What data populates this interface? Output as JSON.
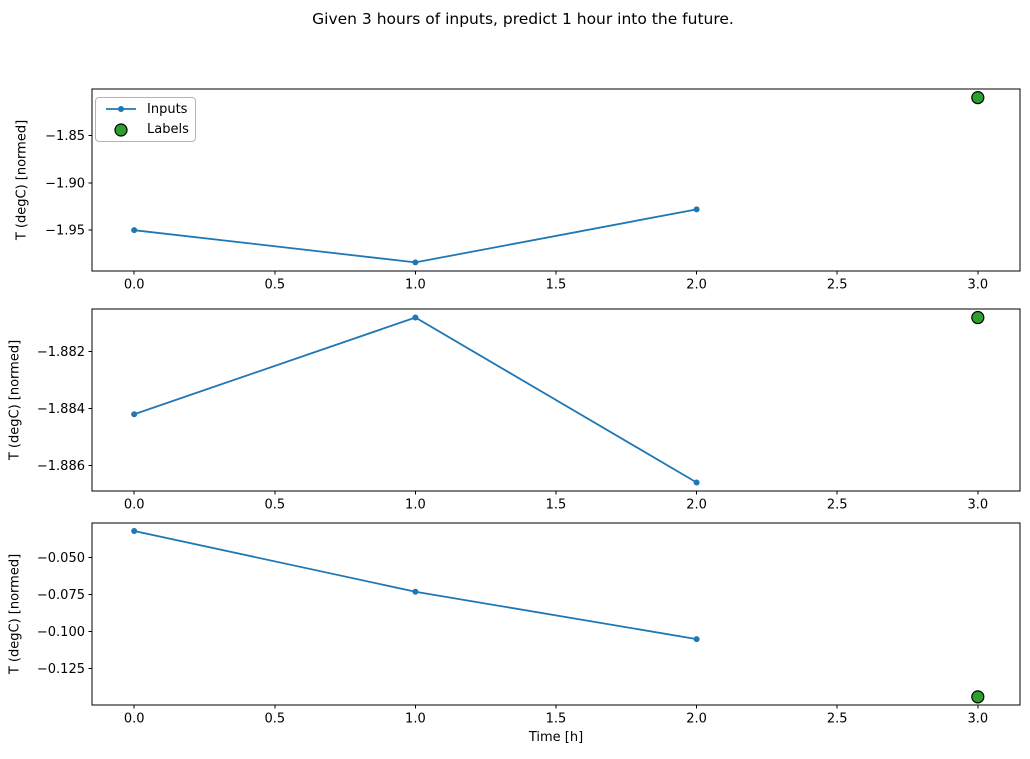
{
  "figure": {
    "title": "Given 3 hours of inputs, predict 1 hour into the future.",
    "xlabel": "Time [h]",
    "background": "#ffffff"
  },
  "legend": {
    "position": "upper-left-of-first-subplot",
    "entries": [
      {
        "label": "Inputs",
        "type": "line-marker",
        "color": "#1f77b4"
      },
      {
        "label": "Labels",
        "type": "circle",
        "color": "#2ca02c",
        "edge": "#000000"
      }
    ]
  },
  "x_axis": {
    "label": "Time [h]",
    "ticks": [
      0.0,
      0.5,
      1.0,
      1.5,
      2.0,
      2.5,
      3.0
    ],
    "tick_labels": [
      "0.0",
      "0.5",
      "1.0",
      "1.5",
      "2.0",
      "2.5",
      "3.0"
    ]
  },
  "chart_data": [
    {
      "type": "line",
      "ylabel": "T (degC) [normed]",
      "xlim": [
        -0.15,
        3.15
      ],
      "ylim": [
        -1.9931,
        -1.8009
      ],
      "yticks": [
        -1.85,
        -1.9,
        -1.95
      ],
      "ytick_labels": [
        "−1.85",
        "−1.90",
        "−1.95"
      ],
      "grid": false,
      "legend_visible": true,
      "series": [
        {
          "name": "Inputs",
          "style": "line+marker",
          "color": "#1f77b4",
          "x": [
            0,
            1,
            2
          ],
          "y": [
            -1.95,
            -1.984,
            -1.928
          ]
        },
        {
          "name": "Labels",
          "style": "scatter",
          "color": "#2ca02c",
          "edge": "#000000",
          "x": [
            3
          ],
          "y": [
            -1.81
          ]
        }
      ]
    },
    {
      "type": "line",
      "ylabel": "T (degC) [normed]",
      "xlim": [
        -0.15,
        3.15
      ],
      "ylim": [
        -1.8869,
        -1.8805
      ],
      "yticks": [
        -1.882,
        -1.884,
        -1.886
      ],
      "ytick_labels": [
        "−1.882",
        "−1.884",
        "−1.886"
      ],
      "grid": false,
      "legend_visible": false,
      "series": [
        {
          "name": "Inputs",
          "style": "line+marker",
          "color": "#1f77b4",
          "x": [
            0,
            1,
            2
          ],
          "y": [
            -1.8842,
            -1.8808,
            -1.8866
          ]
        },
        {
          "name": "Labels",
          "style": "scatter",
          "color": "#2ca02c",
          "edge": "#000000",
          "x": [
            3
          ],
          "y": [
            -1.8808
          ]
        }
      ]
    },
    {
      "type": "line",
      "ylabel": "T (degC) [normed]",
      "xlim": [
        -0.15,
        3.15
      ],
      "ylim": [
        -0.1495,
        -0.0266
      ],
      "yticks": [
        -0.05,
        -0.075,
        -0.1,
        -0.125
      ],
      "ytick_labels": [
        "−0.050",
        "−0.075",
        "−0.100",
        "−0.125"
      ],
      "grid": false,
      "legend_visible": false,
      "series": [
        {
          "name": "Inputs",
          "style": "line+marker",
          "color": "#1f77b4",
          "x": [
            0,
            1,
            2
          ],
          "y": [
            -0.032,
            -0.073,
            -0.105
          ]
        },
        {
          "name": "Labels",
          "style": "scatter",
          "color": "#2ca02c",
          "edge": "#000000",
          "x": [
            3
          ],
          "y": [
            -0.144
          ]
        }
      ]
    }
  ]
}
